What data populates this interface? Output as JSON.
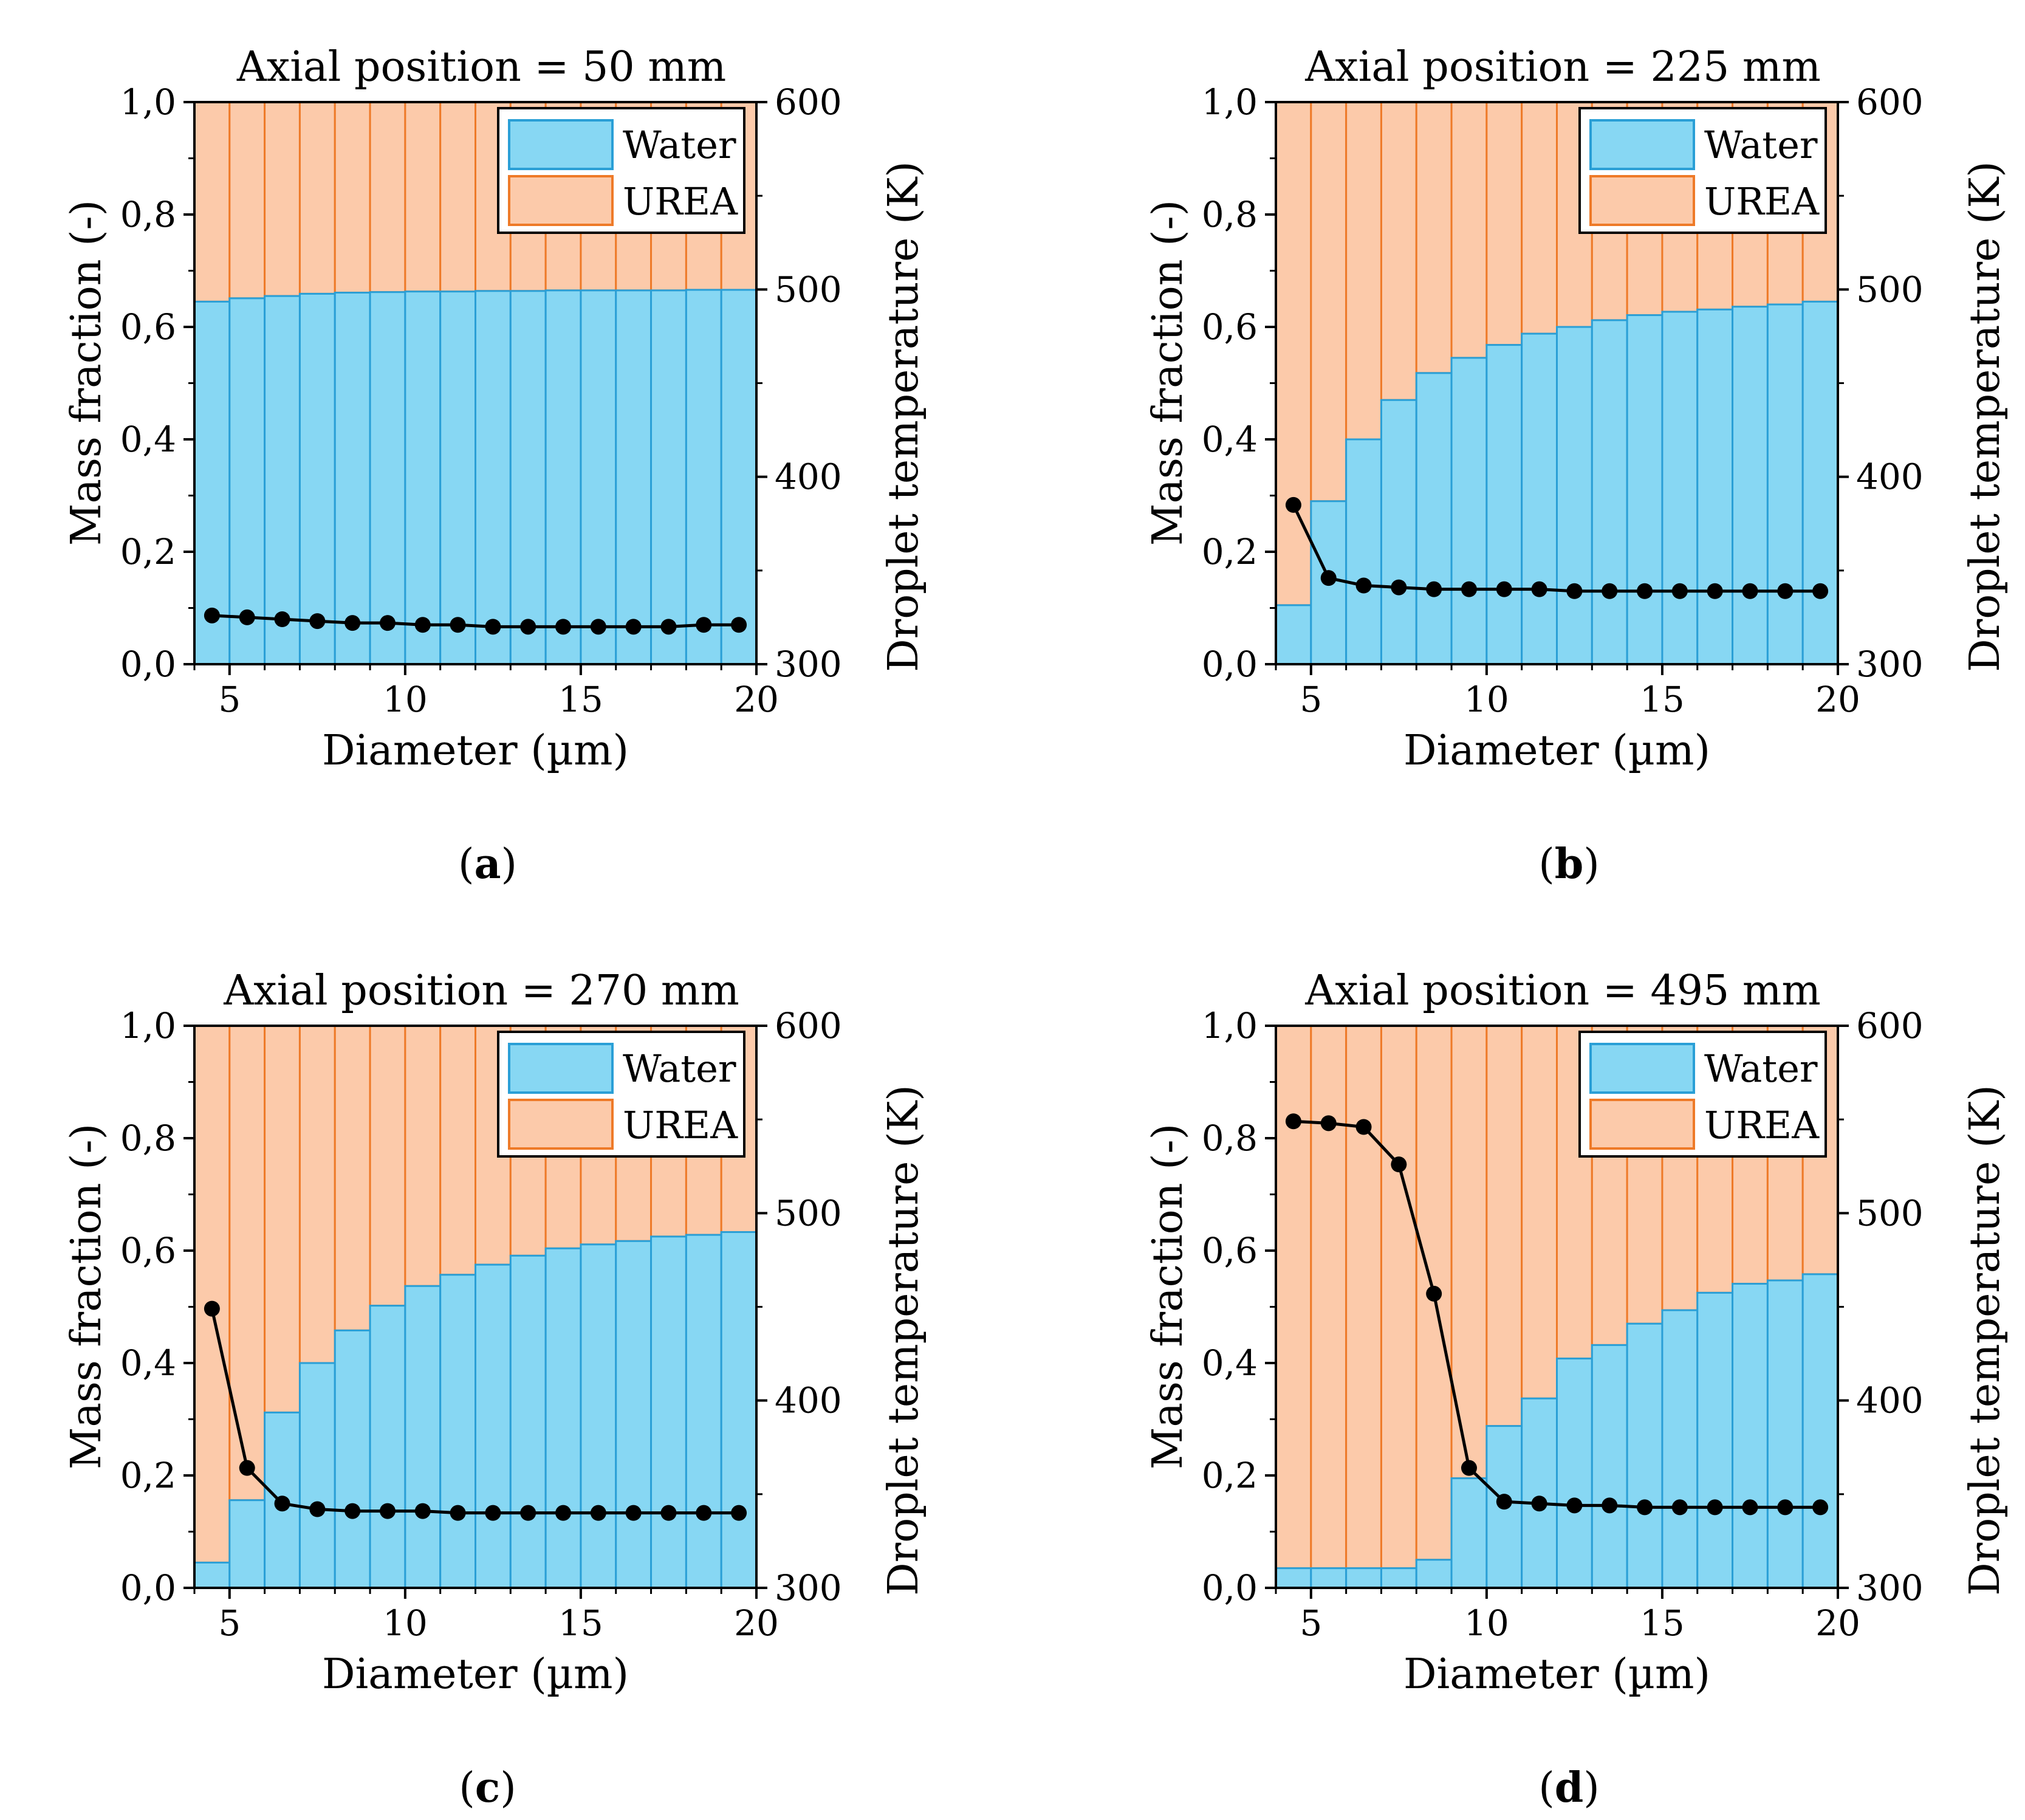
{
  "chart_data": [
    {
      "type": "bar",
      "panel_label": "a",
      "title": "Axial position = 50 mm",
      "xlabel": "Diameter (µm)",
      "ylabel": "Mass fraction (-)",
      "y2label": "Droplet temperature (K)",
      "xlim": [
        4,
        20
      ],
      "ylim": [
        0,
        1
      ],
      "y2lim": [
        300,
        600
      ],
      "xticks": [
        "5",
        "10",
        "15",
        "20"
      ],
      "yticks": [
        "0,0",
        "0,2",
        "0,4",
        "0,6",
        "0,8",
        "1,0"
      ],
      "y2ticks": [
        "300",
        "400",
        "500",
        "600"
      ],
      "legend": [
        "Water",
        "UREA"
      ],
      "legend_position": "top-right",
      "bin_edges": [
        4,
        5,
        6,
        7,
        8,
        9,
        10,
        11,
        12,
        13,
        14,
        15,
        16,
        17,
        18,
        19,
        20
      ],
      "series": [
        {
          "name": "Water",
          "stacked": true,
          "values": [
            0.645,
            0.651,
            0.655,
            0.659,
            0.661,
            0.662,
            0.663,
            0.663,
            0.664,
            0.664,
            0.665,
            0.665,
            0.665,
            0.665,
            0.666,
            0.666
          ]
        },
        {
          "name": "UREA",
          "stacked": true,
          "values": [
            0.355,
            0.349,
            0.345,
            0.341,
            0.339,
            0.338,
            0.337,
            0.337,
            0.336,
            0.336,
            0.335,
            0.335,
            0.335,
            0.335,
            0.334,
            0.334
          ]
        },
        {
          "name": "Droplet temperature",
          "type": "line",
          "axis": "right",
          "x": [
            4.5,
            5.5,
            6.5,
            7.5,
            8.5,
            9.5,
            10.5,
            11.5,
            12.5,
            13.5,
            14.5,
            15.5,
            16.5,
            17.5,
            18.5,
            19.5
          ],
          "values": [
            326,
            325,
            324,
            323,
            322,
            322,
            321,
            321,
            320,
            320,
            320,
            320,
            320,
            320,
            321,
            321
          ]
        }
      ]
    },
    {
      "type": "bar",
      "panel_label": "b",
      "title": "Axial position = 225 mm",
      "xlabel": "Diameter (µm)",
      "ylabel": "Mass fraction (-)",
      "y2label": "Droplet temperature (K)",
      "xlim": [
        4,
        20
      ],
      "ylim": [
        0,
        1
      ],
      "y2lim": [
        300,
        600
      ],
      "xticks": [
        "5",
        "10",
        "15",
        "20"
      ],
      "yticks": [
        "0,0",
        "0,2",
        "0,4",
        "0,6",
        "0,8",
        "1,0"
      ],
      "y2ticks": [
        "300",
        "400",
        "500",
        "600"
      ],
      "legend": [
        "Water",
        "UREA"
      ],
      "legend_position": "top-right",
      "bin_edges": [
        4,
        5,
        6,
        7,
        8,
        9,
        10,
        11,
        12,
        13,
        14,
        15,
        16,
        17,
        18,
        19,
        20
      ],
      "series": [
        {
          "name": "Water",
          "stacked": true,
          "values": [
            0.105,
            0.29,
            0.4,
            0.47,
            0.518,
            0.545,
            0.568,
            0.588,
            0.6,
            0.612,
            0.621,
            0.627,
            0.631,
            0.636,
            0.64,
            0.645
          ]
        },
        {
          "name": "UREA",
          "stacked": true,
          "values": [
            0.895,
            0.71,
            0.6,
            0.53,
            0.482,
            0.455,
            0.432,
            0.412,
            0.4,
            0.388,
            0.379,
            0.373,
            0.369,
            0.364,
            0.36,
            0.355
          ]
        },
        {
          "name": "Droplet temperature",
          "type": "line",
          "axis": "right",
          "x": [
            4.5,
            5.5,
            6.5,
            7.5,
            8.5,
            9.5,
            10.5,
            11.5,
            12.5,
            13.5,
            14.5,
            15.5,
            16.5,
            17.5,
            18.5,
            19.5
          ],
          "values": [
            385,
            346,
            342,
            341,
            340,
            340,
            340,
            340,
            339,
            339,
            339,
            339,
            339,
            339,
            339,
            339
          ]
        }
      ]
    },
    {
      "type": "bar",
      "panel_label": "c",
      "title": "Axial position = 270 mm",
      "xlabel": "Diameter (µm)",
      "ylabel": "Mass fraction (-)",
      "y2label": "Droplet temperature (K)",
      "xlim": [
        4,
        20
      ],
      "ylim": [
        0,
        1
      ],
      "y2lim": [
        300,
        600
      ],
      "xticks": [
        "5",
        "10",
        "15",
        "20"
      ],
      "yticks": [
        "0,0",
        "0,2",
        "0,4",
        "0,6",
        "0,8",
        "1,0"
      ],
      "y2ticks": [
        "300",
        "400",
        "500",
        "600"
      ],
      "legend": [
        "Water",
        "UREA"
      ],
      "legend_position": "top-right",
      "bin_edges": [
        4,
        5,
        6,
        7,
        8,
        9,
        10,
        11,
        12,
        13,
        14,
        15,
        16,
        17,
        18,
        19,
        20
      ],
      "series": [
        {
          "name": "Water",
          "stacked": true,
          "values": [
            0.045,
            0.156,
            0.312,
            0.4,
            0.458,
            0.502,
            0.537,
            0.557,
            0.575,
            0.591,
            0.604,
            0.611,
            0.617,
            0.625,
            0.628,
            0.633
          ]
        },
        {
          "name": "UREA",
          "stacked": true,
          "values": [
            0.955,
            0.844,
            0.688,
            0.6,
            0.542,
            0.498,
            0.463,
            0.443,
            0.425,
            0.409,
            0.396,
            0.389,
            0.383,
            0.375,
            0.372,
            0.367
          ]
        },
        {
          "name": "Droplet temperature",
          "type": "line",
          "axis": "right",
          "x": [
            4.5,
            5.5,
            6.5,
            7.5,
            8.5,
            9.5,
            10.5,
            11.5,
            12.5,
            13.5,
            14.5,
            15.5,
            16.5,
            17.5,
            18.5,
            19.5
          ],
          "values": [
            449,
            364,
            345,
            342,
            341,
            341,
            341,
            340,
            340,
            340,
            340,
            340,
            340,
            340,
            340,
            340
          ]
        }
      ]
    },
    {
      "type": "bar",
      "panel_label": "d",
      "title": "Axial position = 495 mm",
      "xlabel": "Diameter (µm)",
      "ylabel": "Mass fraction (-)",
      "y2label": "Droplet temperature (K)",
      "xlim": [
        4,
        20
      ],
      "ylim": [
        0,
        1
      ],
      "y2lim": [
        300,
        600
      ],
      "xticks": [
        "5",
        "10",
        "15",
        "20"
      ],
      "yticks": [
        "0,0",
        "0,2",
        "0,4",
        "0,6",
        "0,8",
        "1,0"
      ],
      "y2ticks": [
        "300",
        "400",
        "500",
        "600"
      ],
      "legend": [
        "Water",
        "UREA"
      ],
      "legend_position": "top-right",
      "bin_edges": [
        4,
        5,
        6,
        7,
        8,
        9,
        10,
        11,
        12,
        13,
        14,
        15,
        16,
        17,
        18,
        19,
        20
      ],
      "series": [
        {
          "name": "Water",
          "stacked": true,
          "values": [
            0.035,
            0.035,
            0.035,
            0.035,
            0.05,
            0.195,
            0.288,
            0.337,
            0.408,
            0.432,
            0.47,
            0.494,
            0.525,
            0.541,
            0.547,
            0.558
          ]
        },
        {
          "name": "UREA",
          "stacked": true,
          "values": [
            0.965,
            0.965,
            0.965,
            0.965,
            0.95,
            0.805,
            0.712,
            0.663,
            0.592,
            0.568,
            0.53,
            0.506,
            0.475,
            0.459,
            0.453,
            0.442
          ]
        },
        {
          "name": "Droplet temperature",
          "type": "line",
          "axis": "right",
          "x": [
            4.5,
            5.5,
            6.5,
            7.5,
            8.5,
            9.5,
            10.5,
            11.5,
            12.5,
            13.5,
            14.5,
            15.5,
            16.5,
            17.5,
            18.5,
            19.5
          ],
          "values": [
            549,
            548,
            546,
            526,
            457,
            364,
            346,
            345,
            344,
            344,
            343,
            343,
            343,
            343,
            343,
            343
          ]
        }
      ]
    }
  ],
  "colors": {
    "water_fill": "#87d7f3",
    "water_edge": "#2a9fd6",
    "urea_fill": "#fccaaa",
    "urea_edge": "#ee7a28",
    "line": "#000000"
  }
}
